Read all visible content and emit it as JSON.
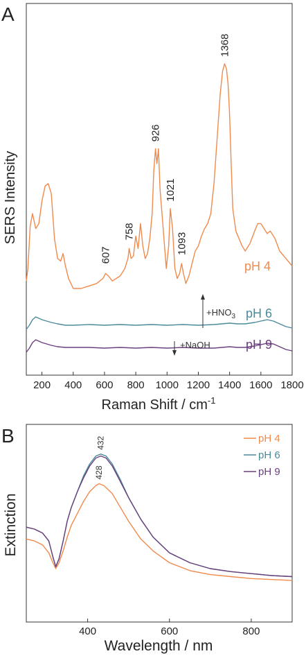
{
  "panels": {
    "a_label": "A",
    "b_label": "B"
  },
  "colors": {
    "ph4": "#f08a4b",
    "ph6": "#4a8a9a",
    "ph9": "#6a3f7e",
    "axis": "#333333"
  },
  "chart_data": [
    {
      "type": "line",
      "panel": "A",
      "xlabel": "Raman Shift / cm",
      "xlabel_sup": "-1",
      "ylabel": "SERS Intensity",
      "xlim": [
        100,
        1800
      ],
      "x_ticks": [
        200,
        400,
        600,
        800,
        1000,
        1200,
        1400,
        1600,
        1800
      ],
      "ylim": [
        0,
        100
      ],
      "y_ticks_shown": false,
      "series": [
        {
          "name": "pH 4",
          "x": [
            100,
            110,
            125,
            140,
            160,
            180,
            200,
            220,
            240,
            260,
            280,
            300,
            320,
            335,
            350,
            370,
            400,
            450,
            500,
            550,
            590,
            607,
            625,
            650,
            700,
            730,
            750,
            758,
            770,
            785,
            800,
            815,
            830,
            845,
            860,
            875,
            890,
            905,
            915,
            926,
            935,
            945,
            955,
            965,
            980,
            995,
            1010,
            1021,
            1035,
            1050,
            1065,
            1080,
            1093,
            1105,
            1120,
            1140,
            1160,
            1180,
            1200,
            1220,
            1240,
            1260,
            1280,
            1300,
            1320,
            1340,
            1355,
            1368,
            1380,
            1390,
            1400,
            1410,
            1420,
            1440,
            1460,
            1480,
            1500,
            1530,
            1560,
            1580,
            1600,
            1620,
            1640,
            1660,
            1690,
            1720,
            1760,
            1800
          ],
          "values": [
            13,
            18,
            35,
            40,
            34,
            36,
            45,
            51,
            52,
            48,
            30,
            22,
            21,
            24,
            19,
            14,
            10,
            10,
            11,
            12,
            14,
            16,
            15,
            13,
            15,
            18,
            22,
            26,
            22,
            23,
            31,
            26,
            36,
            27,
            22,
            24,
            30,
            40,
            57,
            66,
            60,
            66,
            50,
            42,
            30,
            18,
            27,
            42,
            34,
            18,
            14,
            16,
            20,
            16,
            12,
            15,
            20,
            25,
            27,
            31,
            34,
            36,
            40,
            52,
            70,
            88,
            97,
            100,
            98,
            92,
            80,
            60,
            42,
            33,
            30,
            27,
            25,
            28,
            33,
            36,
            36,
            34,
            32,
            33,
            30,
            25,
            22,
            19
          ]
        },
        {
          "name": "pH 6",
          "x": [
            100,
            120,
            140,
            160,
            180,
            200,
            230,
            260,
            300,
            350,
            400,
            500,
            600,
            700,
            800,
            900,
            1000,
            1100,
            1200,
            1300,
            1350,
            1400,
            1450,
            1500,
            1560,
            1600,
            1640,
            1680,
            1720,
            1760,
            1800
          ],
          "values": [
            -3,
            0,
            4,
            6,
            5,
            4,
            3,
            2,
            1,
            0,
            0,
            0.5,
            0,
            0.5,
            0,
            0.5,
            0,
            0.5,
            0,
            0.5,
            1,
            1.5,
            1,
            1,
            2,
            3,
            4,
            3,
            1,
            -1,
            -2
          ]
        },
        {
          "name": "pH 9",
          "x": [
            100,
            120,
            140,
            160,
            180,
            200,
            230,
            260,
            300,
            350,
            400,
            500,
            600,
            700,
            800,
            900,
            1000,
            1100,
            1200,
            1300,
            1350,
            1400,
            1450,
            1500,
            1560,
            1600,
            1640,
            1680,
            1720,
            1760,
            1800
          ],
          "values": [
            -3,
            0,
            4,
            6,
            5,
            4,
            3,
            2,
            1,
            0.5,
            0.5,
            0.5,
            0,
            0.5,
            0,
            0.5,
            0,
            0.5,
            0,
            0,
            0.5,
            1,
            0.5,
            0.5,
            1.5,
            2.5,
            3.5,
            3,
            1,
            -1,
            -2
          ]
        }
      ],
      "peak_labels": [
        "607",
        "758",
        "926",
        "1021",
        "1093",
        "1368"
      ],
      "peak_label_x": [
        607,
        758,
        926,
        1021,
        1093,
        1368
      ],
      "series_labels": [
        "pH 4",
        "pH 6",
        "pH 9"
      ],
      "annotations": {
        "acid": "+HNO",
        "acid_sub": "3",
        "base": "+NaOH"
      }
    },
    {
      "type": "line",
      "panel": "B",
      "xlabel": "Wavelength / nm",
      "ylabel": "Extinction",
      "xlim": [
        250,
        900
      ],
      "x_ticks": [
        400,
        600,
        800
      ],
      "ylim": [
        0,
        1
      ],
      "y_ticks_shown": false,
      "series": [
        {
          "name": "pH 4",
          "x": [
            250,
            270,
            290,
            305,
            315,
            322,
            330,
            340,
            350,
            360,
            375,
            390,
            405,
            420,
            428,
            440,
            460,
            480,
            500,
            530,
            560,
            600,
            650,
            700,
            750,
            800,
            850,
            900
          ],
          "values": [
            0.42,
            0.41,
            0.39,
            0.35,
            0.3,
            0.27,
            0.3,
            0.36,
            0.43,
            0.49,
            0.55,
            0.61,
            0.66,
            0.69,
            0.7,
            0.69,
            0.65,
            0.58,
            0.51,
            0.42,
            0.36,
            0.3,
            0.26,
            0.24,
            0.23,
            0.22,
            0.215,
            0.21
          ]
        },
        {
          "name": "pH 6",
          "x": [
            250,
            270,
            290,
            305,
            315,
            322,
            330,
            340,
            350,
            360,
            375,
            390,
            405,
            420,
            432,
            445,
            460,
            480,
            500,
            530,
            560,
            600,
            650,
            700,
            750,
            800,
            850,
            900
          ],
          "values": [
            0.48,
            0.47,
            0.45,
            0.41,
            0.33,
            0.28,
            0.32,
            0.41,
            0.51,
            0.58,
            0.66,
            0.74,
            0.8,
            0.84,
            0.85,
            0.84,
            0.8,
            0.72,
            0.63,
            0.52,
            0.43,
            0.35,
            0.3,
            0.27,
            0.255,
            0.245,
            0.235,
            0.23
          ]
        },
        {
          "name": "pH 9",
          "x": [
            250,
            270,
            290,
            305,
            315,
            322,
            330,
            340,
            350,
            360,
            375,
            390,
            405,
            420,
            432,
            445,
            460,
            480,
            500,
            530,
            560,
            600,
            650,
            700,
            750,
            800,
            850,
            900
          ],
          "values": [
            0.48,
            0.47,
            0.45,
            0.41,
            0.33,
            0.28,
            0.32,
            0.41,
            0.51,
            0.58,
            0.66,
            0.73,
            0.79,
            0.83,
            0.84,
            0.83,
            0.79,
            0.71,
            0.63,
            0.52,
            0.43,
            0.35,
            0.3,
            0.27,
            0.255,
            0.245,
            0.235,
            0.23
          ]
        }
      ],
      "peak_labels": [
        "432",
        "428"
      ],
      "peak_label_x": [
        432,
        428
      ],
      "legend": [
        "pH 4",
        "pH 6",
        "pH 9"
      ],
      "legend_position": "top-right"
    }
  ]
}
